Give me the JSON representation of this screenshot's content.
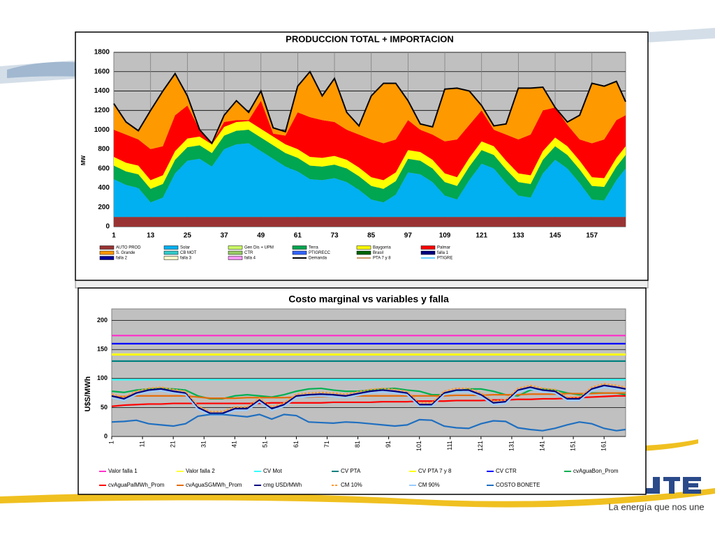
{
  "chart_data": [
    {
      "type": "stacked-area",
      "title": "PRODUCCION TOTAL + IMPORTACION",
      "y_label": "MW",
      "xlim": [
        1,
        168
      ],
      "xticks": [
        1,
        13,
        25,
        37,
        49,
        61,
        73,
        85,
        97,
        109,
        121,
        133,
        145,
        157
      ],
      "ylim": [
        0,
        1800
      ],
      "yticks": [
        0,
        200,
        400,
        600,
        800,
        1000,
        1200,
        1400,
        1600,
        1800
      ],
      "grid": true,
      "x": [
        1,
        5,
        9,
        13,
        17,
        21,
        25,
        29,
        33,
        37,
        41,
        45,
        49,
        53,
        57,
        61,
        65,
        69,
        73,
        77,
        81,
        85,
        89,
        93,
        97,
        101,
        105,
        109,
        113,
        117,
        121,
        125,
        129,
        133,
        137,
        141,
        145,
        149,
        153,
        157,
        161,
        165,
        168
      ],
      "series": [
        {
          "name": "AUTO PROD",
          "color": "#993333",
          "stack": true,
          "values": [
            100,
            100,
            100,
            100,
            100,
            100,
            100,
            100,
            100,
            100,
            100,
            100,
            100,
            100,
            100,
            100,
            100,
            100,
            100,
            100,
            100,
            100,
            100,
            100,
            100,
            100,
            100,
            100,
            100,
            100,
            100,
            100,
            100,
            100,
            100,
            100,
            100,
            100,
            100,
            100,
            100,
            100,
            100
          ]
        },
        {
          "name": "Solar",
          "color": "#00b0f0",
          "stack": true,
          "values": [
            390,
            330,
            300,
            150,
            200,
            450,
            580,
            600,
            520,
            700,
            750,
            760,
            680,
            600,
            520,
            470,
            390,
            380,
            400,
            360,
            280,
            180,
            150,
            230,
            460,
            440,
            360,
            220,
            180,
            380,
            550,
            500,
            350,
            220,
            200,
            450,
            590,
            500,
            350,
            180,
            170,
            380,
            500
          ]
        },
        {
          "name": "Gen Dis + UPM",
          "color": "#ccff66"
        },
        {
          "name": "Terra",
          "color": "#00a650",
          "stack": true,
          "values": [
            140,
            140,
            140,
            140,
            140,
            140,
            140,
            140,
            140,
            140,
            140,
            140,
            140,
            140,
            140,
            140,
            140,
            140,
            140,
            140,
            140,
            140,
            140,
            140,
            140,
            140,
            140,
            140,
            140,
            140,
            140,
            140,
            140,
            140,
            140,
            140,
            140,
            140,
            140,
            140,
            140,
            140,
            140
          ]
        },
        {
          "name": "Baygorria",
          "color": "#ffff00",
          "stack": true,
          "values": [
            90,
            90,
            90,
            90,
            90,
            90,
            90,
            90,
            90,
            90,
            90,
            90,
            90,
            90,
            90,
            90,
            90,
            90,
            90,
            90,
            90,
            90,
            90,
            90,
            90,
            90,
            90,
            90,
            90,
            90,
            90,
            90,
            90,
            90,
            90,
            90,
            90,
            90,
            90,
            90,
            90,
            90,
            90
          ]
        },
        {
          "name": "Palmar",
          "color": "#ff0000",
          "stack": true,
          "values": [
            280,
            290,
            270,
            320,
            300,
            370,
            340,
            70,
            10,
            50,
            20,
            10,
            290,
            30,
            90,
            380,
            410,
            390,
            350,
            310,
            340,
            390,
            380,
            340,
            310,
            230,
            260,
            330,
            390,
            340,
            320,
            170,
            270,
            350,
            420,
            420,
            310,
            220,
            220,
            350,
            400,
            390,
            320
          ]
        },
        {
          "name": "S. Grande",
          "color": "#ff9900",
          "stack": true,
          "values": [
            270,
            130,
            90,
            400,
            570,
            430,
            100,
            0,
            0,
            70,
            200,
            80,
            100,
            60,
            40,
            270,
            470,
            250,
            450,
            180,
            90,
            450,
            620,
            580,
            200,
            60,
            80,
            540,
            530,
            350,
            50,
            40,
            110,
            530,
            480,
            240,
            0,
            30,
            250,
            620,
            550,
            400,
            140
          ]
        },
        {
          "name": "CB MOT",
          "color": "#33cccc"
        },
        {
          "name": "CTR",
          "color": "#99cc66"
        },
        {
          "name": "PTIGRECC",
          "color": "#3366ff"
        },
        {
          "name": "Brasil",
          "color": "#006600"
        },
        {
          "name": "falla 1",
          "color": "#000080"
        },
        {
          "name": "falla 2",
          "color": "#000099"
        },
        {
          "name": "falla 3",
          "color": "#ffffcc"
        },
        {
          "name": "falla 4",
          "color": "#ff99ff"
        },
        {
          "name": "Demanda",
          "color": "#000000",
          "line": true,
          "values": [
            1270,
            1080,
            990,
            1200,
            1400,
            1580,
            1350,
            1000,
            860,
            1150,
            1300,
            1180,
            1400,
            1020,
            980,
            1450,
            1600,
            1350,
            1530,
            1180,
            1040,
            1350,
            1480,
            1480,
            1300,
            1060,
            1030,
            1420,
            1430,
            1400,
            1250,
            1040,
            1060,
            1430,
            1430,
            1440,
            1230,
            1080,
            1150,
            1480,
            1450,
            1500,
            1290
          ]
        },
        {
          "name": "PTA 7 y 8",
          "color": "#cc9966",
          "line": true
        },
        {
          "name": "PTIGRE",
          "color": "#66ccff",
          "line": true
        }
      ]
    },
    {
      "type": "line",
      "title": "Costo marginal  vs variables y falla",
      "y_label": "U$S/MWh",
      "xlim": [
        1,
        168
      ],
      "xticks": [
        1,
        11,
        21,
        31,
        41,
        51,
        61,
        71,
        81,
        91,
        101,
        111,
        121,
        131,
        141,
        151,
        161
      ],
      "ylim": [
        0,
        220
      ],
      "yticks": [
        0,
        50,
        100,
        150,
        200
      ],
      "grid": true,
      "x": [
        1,
        5,
        9,
        13,
        17,
        21,
        25,
        29,
        33,
        37,
        41,
        45,
        49,
        53,
        57,
        61,
        65,
        69,
        73,
        77,
        81,
        85,
        89,
        93,
        97,
        101,
        105,
        109,
        113,
        117,
        121,
        125,
        129,
        133,
        137,
        141,
        145,
        149,
        153,
        157,
        161,
        165,
        168
      ],
      "series": [
        {
          "name": "Valor falla 1",
          "color": "#ff33cc",
          "x": [
            1,
            168
          ],
          "values": [
            174,
            174
          ]
        },
        {
          "name": "Valor falla 2",
          "color": "#ffff33",
          "x": [
            1,
            168
          ],
          "values": [
            142,
            142
          ]
        },
        {
          "name": "CV Mot",
          "color": "#33ffff",
          "x": [
            1,
            168
          ],
          "values": [
            98,
            98
          ]
        },
        {
          "name": "CV PTA",
          "color": "#008080",
          "x": [
            1,
            168
          ],
          "values": [
            130,
            130
          ]
        },
        {
          "name": "CV PTA 7 y 8",
          "color": "#ffff00",
          "x": [
            1,
            168
          ],
          "values": [
            141,
            141
          ]
        },
        {
          "name": "CV CTR",
          "color": "#0000ff",
          "x": [
            1,
            168
          ],
          "values": [
            160,
            160
          ]
        },
        {
          "name": "cvAguaBon_Prom",
          "color": "#00b050",
          "values": [
            78,
            76,
            80,
            82,
            83,
            82,
            80,
            70,
            65,
            65,
            70,
            72,
            70,
            68,
            72,
            78,
            82,
            83,
            80,
            78,
            78,
            80,
            82,
            83,
            80,
            78,
            72,
            72,
            78,
            82,
            82,
            78,
            72,
            70,
            80,
            82,
            80,
            75,
            72,
            75,
            75,
            75,
            72
          ]
        },
        {
          "name": "cvAguaPalMWh_Prom",
          "color": "#ff0000",
          "values": [
            52,
            54,
            55,
            56,
            56,
            57,
            57,
            57,
            57,
            57,
            57,
            57,
            57,
            58,
            58,
            58,
            58,
            58,
            59,
            59,
            59,
            59,
            60,
            60,
            60,
            61,
            61,
            61,
            62,
            62,
            62,
            63,
            63,
            64,
            64,
            65,
            65,
            66,
            67,
            68,
            69,
            70,
            70
          ]
        },
        {
          "name": "cvAguaSGMWh_Prom",
          "color": "#e46c0a",
          "values": [
            68,
            69,
            70,
            70,
            70,
            70,
            70,
            68,
            66,
            66,
            66,
            67,
            67,
            67,
            67,
            68,
            68,
            69,
            69,
            69,
            70,
            70,
            70,
            70,
            70,
            70,
            70,
            70,
            71,
            71,
            71,
            72,
            72,
            72,
            73,
            73,
            73,
            74,
            74,
            74,
            75,
            75,
            75
          ]
        },
        {
          "name": "cmg USD/MWh",
          "color": "#000080",
          "values": [
            70,
            65,
            75,
            80,
            82,
            78,
            75,
            50,
            40,
            40,
            48,
            48,
            63,
            48,
            55,
            70,
            72,
            73,
            72,
            70,
            74,
            78,
            80,
            78,
            75,
            55,
            55,
            75,
            80,
            80,
            72,
            58,
            60,
            80,
            85,
            80,
            78,
            65,
            65,
            82,
            88,
            85,
            82
          ]
        },
        {
          "name": "CM 10%",
          "color": "#ff9933",
          "dash": true,
          "values": [
            73,
            68,
            78,
            83,
            85,
            81,
            78,
            53,
            43,
            43,
            51,
            51,
            66,
            51,
            58,
            73,
            75,
            76,
            75,
            73,
            77,
            81,
            83,
            81,
            78,
            58,
            58,
            78,
            83,
            83,
            75,
            61,
            63,
            83,
            88,
            83,
            81,
            68,
            68,
            85,
            91,
            88,
            85
          ]
        },
        {
          "name": "CM 90%",
          "color": "#99ccff",
          "values": [
            67,
            62,
            72,
            77,
            79,
            75,
            72,
            47,
            37,
            37,
            45,
            45,
            60,
            45,
            52,
            67,
            69,
            70,
            69,
            67,
            71,
            75,
            77,
            75,
            72,
            52,
            52,
            72,
            77,
            77,
            69,
            55,
            57,
            77,
            82,
            77,
            75,
            62,
            62,
            79,
            85,
            82,
            79
          ]
        },
        {
          "name": "COSTO BONETE",
          "color": "#1f6fc0",
          "values": [
            25,
            26,
            28,
            22,
            20,
            18,
            22,
            35,
            38,
            38,
            36,
            34,
            38,
            30,
            38,
            36,
            25,
            24,
            23,
            25,
            24,
            22,
            20,
            18,
            20,
            29,
            28,
            18,
            15,
            14,
            22,
            27,
            26,
            15,
            12,
            10,
            14,
            20,
            25,
            22,
            14,
            10,
            12
          ]
        }
      ]
    }
  ],
  "tagline": "La energía que nos une"
}
